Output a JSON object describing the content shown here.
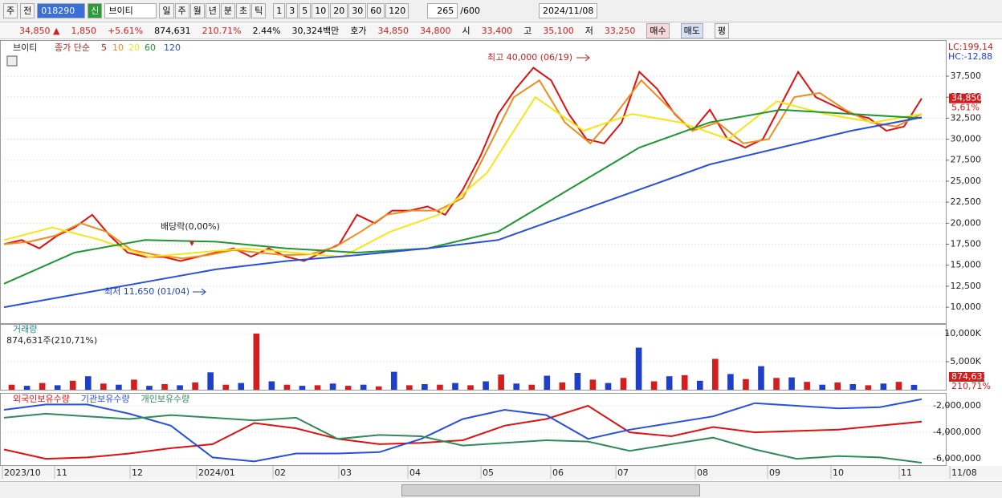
{
  "toolbar": {
    "market": "주",
    "prev": "전",
    "code": "018290",
    "badge": "신",
    "name": "브이티",
    "periods": [
      "일",
      "주",
      "월",
      "년",
      "분",
      "초",
      "틱"
    ],
    "counts": [
      "1",
      "3",
      "5",
      "10",
      "20",
      "30",
      "60",
      "120"
    ],
    "bars": "265",
    "max_bars": "/600",
    "date": "2024/11/08"
  },
  "info_bar": {
    "price": "34,850 ▲",
    "change": "1,850",
    "rate": "+5.61%",
    "volume": "874,631",
    "vol_rate": "210.71%",
    "turnover": "2.44%",
    "amount": "30,324백만",
    "quote_label": "호가",
    "ask": "34,850",
    "bid": "34,800",
    "open_label": "시",
    "open": "33,400",
    "high_label": "고",
    "high": "35,100",
    "low_label": "저",
    "low": "33,250",
    "buy": "매수",
    "sell": "매도",
    "avg": "평"
  },
  "time_axis": [
    "2023/10",
    "11",
    "12",
    "2024/01",
    "02",
    "03",
    "04",
    "05",
    "06",
    "07",
    "08",
    "09",
    "10",
    "11",
    "11/08"
  ],
  "chart_data": [
    {
      "type": "line",
      "title": "브이티",
      "legend_label": "종가 단순",
      "lc": "LC:199,14",
      "hc": "HC:-12,88",
      "last_label": "34,850",
      "last_rate": "5,61%",
      "annotations": {
        "high": "최고 40,000 (06/19)",
        "low": "최저 11,650 (01/04)",
        "dividend": "배당락(0,00%)"
      },
      "ylim": [
        8100,
        41600
      ],
      "yticks": [
        {
          "value": 10000,
          "label": "10,000"
        },
        {
          "value": 12500,
          "label": "12,500"
        },
        {
          "value": 15000,
          "label": "15,000"
        },
        {
          "value": 17500,
          "label": "17,500"
        },
        {
          "value": 20000,
          "label": "20,000"
        },
        {
          "value": 22500,
          "label": "22,500"
        },
        {
          "value": 25000,
          "label": "25,000"
        },
        {
          "value": 27500,
          "label": "27,500"
        },
        {
          "value": 30000,
          "label": "30,000"
        },
        {
          "value": 32500,
          "label": "32,500"
        },
        {
          "value": 35000,
          "label": "35,000"
        },
        {
          "value": 37500,
          "label": "37,500"
        }
      ],
      "series": [
        {
          "name": "5",
          "color": "#e01010",
          "values": [
            17500,
            18000,
            17000,
            18500,
            19500,
            21000,
            18500,
            16500,
            16000,
            16000,
            15500,
            16000,
            16500,
            17000,
            16000,
            17000,
            16000,
            15500,
            16500,
            17500,
            21000,
            20000,
            21500,
            21500,
            22000,
            21000,
            24000,
            28000,
            33000,
            36000,
            38500,
            37000,
            33000,
            30000,
            29500,
            32000,
            38000,
            36000,
            33000,
            31000,
            33500,
            30000,
            29000,
            30000,
            34000,
            38000,
            35000,
            34000,
            33000,
            32500,
            31000,
            31500,
            34850
          ]
        },
        {
          "name": "10",
          "color": "#f08c1e",
          "values": [
            17500,
            17800,
            18500,
            20000,
            19000,
            16800,
            16200,
            15800,
            16200,
            16800,
            16500,
            16200,
            16300,
            17200,
            19000,
            21000,
            21500,
            21500,
            23000,
            29000,
            35000,
            37000,
            32000,
            29500,
            33000,
            37000,
            34000,
            31000,
            32000,
            29500,
            30000,
            35000,
            35500,
            33500,
            32000,
            31500,
            33000
          ]
        },
        {
          "name": "20",
          "color": "#f5e614",
          "values": [
            18000,
            19500,
            18000,
            16000,
            16500,
            17000,
            16500,
            16000,
            19000,
            21000,
            26000,
            35000,
            31000,
            33000,
            32000,
            30000,
            34500,
            33000,
            32000,
            33000
          ]
        },
        {
          "name": "60",
          "color": "#1e9632",
          "values": [
            12800,
            16500,
            18000,
            17800,
            17000,
            16500,
            17000,
            19000,
            24000,
            29000,
            32000,
            33500,
            33000,
            32500
          ]
        },
        {
          "name": "120",
          "color": "#2850dc",
          "values": [
            10000,
            11500,
            13000,
            14500,
            15500,
            16200,
            17000,
            18000,
            21000,
            24000,
            27000,
            29000,
            31000,
            32600
          ]
        }
      ]
    },
    {
      "type": "bar",
      "title": "거래량",
      "subtitle": "874,631주(210,71%)",
      "last_label": "874,631",
      "last_rate": "210,71%",
      "ylim": [
        0,
        11430
      ],
      "yticks": [
        {
          "value": 5000,
          "label": "5,000K"
        },
        {
          "value": 10000,
          "label": "10,000K"
        }
      ],
      "colors": [
        "#d21e1e",
        "#1e3fc8"
      ],
      "values": [
        900,
        700,
        1200,
        800,
        1600,
        2400,
        1100,
        900,
        1800,
        700,
        1000,
        800,
        1300,
        3100,
        900,
        1200,
        10000,
        1500,
        900,
        700,
        800,
        1100,
        700,
        900,
        600,
        3200,
        800,
        1000,
        900,
        1200,
        800,
        1500,
        2700,
        1100,
        900,
        2500,
        1300,
        3000,
        1800,
        1200,
        2100,
        7500,
        1500,
        2400,
        2600,
        1600,
        5500,
        2800,
        1900,
        4200,
        2100,
        2200,
        1400,
        900,
        1300,
        1000,
        800,
        1100,
        1400,
        874.631
      ]
    },
    {
      "type": "line",
      "legend": [
        "외국인보유수량",
        "기관보유수량",
        "개인보유수량"
      ],
      "ylim": [
        -6480000,
        -1150000
      ],
      "yticks": [
        {
          "value": -6000000,
          "label": "-6,000,000"
        },
        {
          "value": -4000000,
          "label": "-4,000,000"
        },
        {
          "value": -2000000,
          "label": "-2,000,000"
        }
      ],
      "series": [
        {
          "name": "외국인보유수량",
          "color": "#e01010",
          "values": [
            -5300000,
            -6000000,
            -5900000,
            -5600000,
            -5200000,
            -4900000,
            -3300000,
            -3700000,
            -4500000,
            -4900000,
            -4800000,
            -4600000,
            -3500000,
            -3000000,
            -2000000,
            -4000000,
            -4300000,
            -3600000,
            -4000000,
            -3900000,
            -3800000,
            -3500000,
            -3200000
          ]
        },
        {
          "name": "기관보유수량",
          "color": "#2850dc",
          "values": [
            -2300000,
            -1900000,
            -1900000,
            -2600000,
            -3500000,
            -5900000,
            -6200000,
            -5600000,
            -5600000,
            -5500000,
            -4500000,
            -3000000,
            -2300000,
            -2700000,
            -4500000,
            -3800000,
            -3300000,
            -2800000,
            -1800000,
            -2000000,
            -2200000,
            -2100000,
            -1500000
          ]
        },
        {
          "name": "개인보유수량",
          "color": "#2e8b57",
          "values": [
            -2900000,
            -2600000,
            -2800000,
            -3000000,
            -2700000,
            -2900000,
            -3100000,
            -2900000,
            -4500000,
            -4200000,
            -4300000,
            -5000000,
            -4800000,
            -4600000,
            -4700000,
            -5400000,
            -4900000,
            -4400000,
            -5300000,
            -6000000,
            -5800000,
            -5900000,
            -6300000
          ]
        }
      ]
    }
  ]
}
